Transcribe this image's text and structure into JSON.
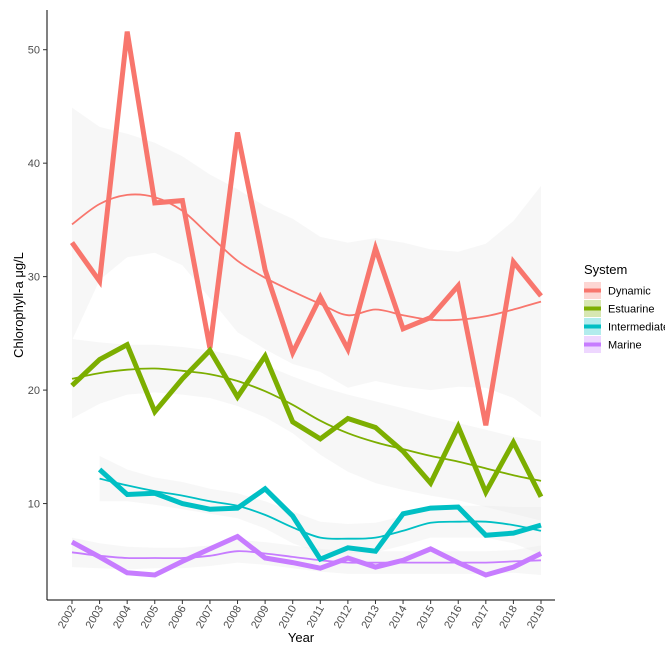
{
  "chart_data": {
    "type": "line",
    "xlabel": "Year",
    "ylabel": "Chlorophyll-a    μg/L",
    "x": [
      2002,
      2003,
      2004,
      2005,
      2006,
      2007,
      2008,
      2009,
      2010,
      2011,
      2012,
      2013,
      2014,
      2015,
      2016,
      2017,
      2018,
      2019
    ],
    "x_tick_labels": [
      "2002",
      "2003",
      "2004",
      "2005",
      "2006",
      "2007",
      "2008",
      "2009",
      "2010",
      "2011",
      "2012",
      "2013",
      "2014",
      "2015",
      "2016",
      "2017",
      "2018",
      "2019"
    ],
    "y_ticks": [
      10,
      20,
      30,
      40,
      50
    ],
    "y_tick_labels": [
      "10",
      "20",
      "30",
      "40",
      "50"
    ],
    "ylim": [
      1.5,
      53.5
    ],
    "grid": false,
    "legend": {
      "title": "System",
      "position": "right",
      "entries": [
        "Dynamic",
        "Estuarine",
        "Intermediate",
        "Marine"
      ]
    },
    "series": [
      {
        "name": "Dynamic",
        "color": "#F8766D",
        "x": [
          2002,
          2003,
          2004,
          2005,
          2006,
          2007,
          2008,
          2009,
          2010,
          2011,
          2012,
          2013,
          2014,
          2015,
          2016,
          2017,
          2018,
          2019
        ],
        "values": [
          33.0,
          29.6,
          51.6,
          36.5,
          36.7,
          23.7,
          42.7,
          30.6,
          23.3,
          28.2,
          23.6,
          32.5,
          25.4,
          26.4,
          29.2,
          16.9,
          31.3,
          28.3
        ],
        "smooth": [
          34.6,
          36.4,
          37.2,
          37.0,
          35.8,
          33.6,
          31.4,
          29.9,
          28.7,
          27.6,
          26.6,
          27.1,
          26.6,
          26.2,
          26.2,
          26.5,
          27.1,
          27.8
        ],
        "band_upper": [
          44.9,
          43.2,
          42.6,
          41.8,
          40.6,
          39.0,
          37.7,
          36.2,
          35.1,
          33.5,
          33.0,
          33.4,
          33.0,
          32.4,
          32.2,
          32.9,
          34.9,
          38.0
        ],
        "band_lower": [
          24.4,
          29.7,
          31.7,
          32.1,
          31.0,
          28.1,
          25.1,
          23.6,
          22.3,
          21.6,
          20.2,
          20.8,
          20.3,
          20.0,
          20.3,
          20.2,
          19.3,
          17.6
        ]
      },
      {
        "name": "Estuarine",
        "color": "#7CAE00",
        "x": [
          2002,
          2003,
          2004,
          2005,
          2006,
          2007,
          2008,
          2009,
          2010,
          2011,
          2012,
          2013,
          2014,
          2015,
          2016,
          2017,
          2018,
          2019
        ],
        "values": [
          20.4,
          22.7,
          24.0,
          18.1,
          21.0,
          23.5,
          19.4,
          23.0,
          17.2,
          15.7,
          17.5,
          16.7,
          14.6,
          11.8,
          16.8,
          11.0,
          15.4,
          10.6
        ],
        "smooth": [
          21.0,
          21.5,
          21.8,
          21.9,
          21.7,
          21.4,
          20.8,
          19.9,
          18.7,
          17.3,
          16.2,
          15.4,
          14.8,
          14.2,
          13.7,
          13.1,
          12.5,
          12.0
        ],
        "band_upper": [
          24.5,
          24.2,
          24.0,
          24.0,
          23.8,
          23.5,
          23.0,
          22.2,
          21.2,
          20.3,
          19.6,
          19.0,
          18.4,
          17.7,
          17.1,
          16.5,
          15.9,
          15.5
        ],
        "band_lower": [
          17.5,
          18.8,
          19.6,
          19.8,
          19.6,
          19.3,
          18.6,
          17.6,
          16.2,
          14.3,
          12.8,
          11.8,
          11.2,
          10.7,
          10.3,
          9.7,
          9.1,
          8.5
        ]
      },
      {
        "name": "Intermediate",
        "color": "#00BFC4",
        "x": [
          2003,
          2004,
          2005,
          2006,
          2007,
          2008,
          2009,
          2010,
          2011,
          2012,
          2013,
          2014,
          2015,
          2016,
          2017,
          2018,
          2019
        ],
        "values": [
          13.0,
          10.8,
          10.9,
          10.0,
          9.5,
          9.6,
          11.3,
          8.9,
          5.1,
          6.1,
          5.8,
          9.1,
          9.6,
          9.7,
          7.2,
          7.4,
          8.1
        ],
        "smooth": [
          12.2,
          11.6,
          11.1,
          10.7,
          10.2,
          9.8,
          9.0,
          7.9,
          7.0,
          6.9,
          7.0,
          7.6,
          8.3,
          8.4,
          8.4,
          8.1,
          7.6
        ],
        "band_upper": [
          14.2,
          13.0,
          12.3,
          11.9,
          11.3,
          10.9,
          10.2,
          9.3,
          8.4,
          8.2,
          8.3,
          8.9,
          9.6,
          9.8,
          9.8,
          9.7,
          9.7
        ],
        "band_lower": [
          10.2,
          10.2,
          9.9,
          9.5,
          9.1,
          8.7,
          7.8,
          6.5,
          5.6,
          5.6,
          5.7,
          6.3,
          7.0,
          7.0,
          7.0,
          6.5,
          5.5
        ]
      },
      {
        "name": "Marine",
        "color": "#C77CFF",
        "x": [
          2002,
          2003,
          2004,
          2005,
          2006,
          2007,
          2008,
          2009,
          2010,
          2011,
          2012,
          2013,
          2014,
          2015,
          2016,
          2017,
          2018,
          2019
        ],
        "values": [
          6.6,
          5.3,
          3.9,
          3.7,
          4.9,
          6.0,
          7.1,
          5.2,
          4.8,
          4.3,
          5.2,
          4.4,
          5.0,
          6.0,
          4.8,
          3.7,
          4.4,
          5.6
        ],
        "smooth": [
          5.7,
          5.4,
          5.2,
          5.2,
          5.2,
          5.4,
          5.8,
          5.6,
          5.3,
          5.0,
          4.8,
          4.8,
          4.8,
          4.8,
          4.8,
          4.8,
          4.9,
          5.0
        ],
        "band_upper": [
          7.0,
          6.5,
          6.2,
          6.1,
          6.1,
          6.3,
          6.8,
          6.6,
          6.3,
          6.0,
          5.8,
          5.8,
          5.8,
          5.8,
          5.8,
          5.8,
          5.9,
          6.3
        ],
        "band_lower": [
          4.4,
          4.3,
          4.2,
          4.3,
          4.3,
          4.5,
          4.8,
          4.6,
          4.3,
          4.0,
          3.8,
          3.8,
          3.8,
          3.8,
          3.8,
          3.8,
          3.9,
          3.7
        ]
      }
    ]
  }
}
